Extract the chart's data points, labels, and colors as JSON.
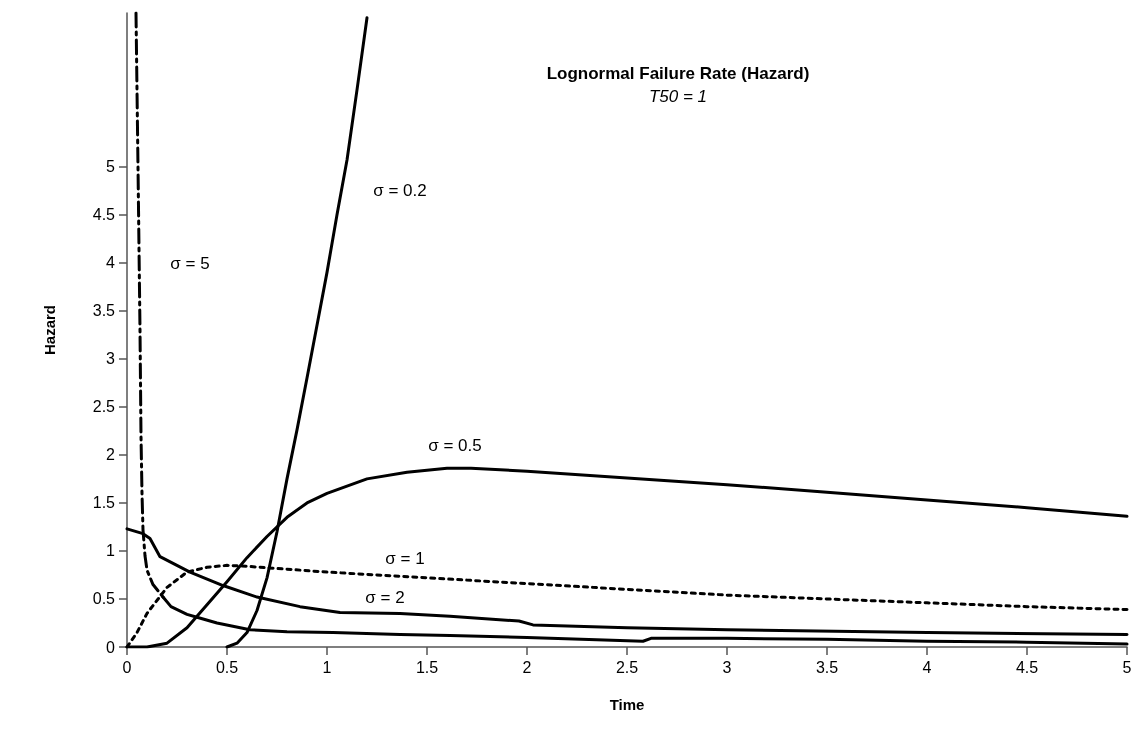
{
  "chart_data": {
    "type": "line",
    "title": "Lognormal Failure Rate (Hazard)",
    "subtitle": "T50 = 1",
    "xlabel": "Time",
    "ylabel": "Hazard",
    "xlim": [
      0,
      5
    ],
    "xticks": [
      0,
      0.5,
      1,
      1.5,
      2,
      2.5,
      3,
      3.5,
      4,
      4.5,
      5
    ],
    "ylim": [
      0,
      6.6
    ],
    "yticks": [
      0,
      0.5,
      1,
      1.5,
      2,
      2.5,
      3,
      3.5,
      4,
      4.5,
      5
    ],
    "grid": false,
    "marker": "none",
    "series": [
      {
        "color": "#000000",
        "line_style": "solid",
        "x": [
          0.5,
          0.55,
          0.6,
          0.65,
          0.7,
          0.75,
          0.8,
          0.85,
          0.9,
          0.95,
          1.0,
          1.05,
          1.1,
          1.15,
          1.2
        ],
        "values": [
          0,
          0.04,
          0.15,
          0.38,
          0.72,
          1.2,
          1.75,
          2.26,
          2.8,
          3.35,
          3.9,
          4.5,
          5.07,
          5.8,
          6.55
        ]
      },
      {
        "color": "#000000",
        "line_style": "solid",
        "x": [
          0,
          0.1,
          0.2,
          0.3,
          0.4,
          0.5,
          0.6,
          0.7,
          0.8,
          0.9,
          1.0,
          1.2,
          1.4,
          1.6,
          1.72,
          2.0,
          2.5,
          3,
          3.5,
          4,
          4.5,
          5
        ],
        "values": [
          0,
          0,
          0.04,
          0.2,
          0.44,
          0.68,
          0.93,
          1.15,
          1.35,
          1.5,
          1.6,
          1.75,
          1.82,
          1.86,
          1.86,
          1.83,
          1.76,
          1.69,
          1.61,
          1.53,
          1.45,
          1.36
        ]
      },
      {
        "color": "#000000",
        "line_style": "dotted",
        "x": [
          0,
          0.05,
          0.1,
          0.2,
          0.3,
          0.4,
          0.5,
          0.6,
          0.8,
          1,
          1.5,
          2,
          2.5,
          3,
          3.5,
          4,
          4.5,
          5
        ],
        "values": [
          0,
          0.15,
          0.35,
          0.62,
          0.78,
          0.83,
          0.85,
          0.84,
          0.81,
          0.78,
          0.72,
          0.66,
          0.6,
          0.54,
          0.5,
          0.46,
          0.42,
          0.39
        ]
      },
      {
        "color": "#000000",
        "line_style": "solid",
        "x": [
          0,
          0.08,
          0.115,
          0.165,
          0.315,
          0.48,
          0.65,
          0.865,
          1.065,
          1.365,
          1.615,
          1.96,
          2.03,
          2.5,
          3,
          4,
          5
        ],
        "values": [
          1.23,
          1.18,
          1.13,
          0.94,
          0.78,
          0.64,
          0.52,
          0.42,
          0.36,
          0.35,
          0.32,
          0.27,
          0.23,
          0.2,
          0.18,
          0.15,
          0.13
        ]
      },
      {
        "color": "#000000",
        "line_style": "dashed",
        "x": [
          0.045,
          0.055,
          0.065,
          0.07,
          0.075,
          0.08,
          0.09,
          0.1,
          0.13,
          0.18
        ],
        "values": [
          6.6,
          5,
          3.3,
          2.2,
          1.6,
          1.22,
          0.95,
          0.8,
          0.65,
          0.52
        ]
      },
      {
        "color": "#000000",
        "line_style": "solid",
        "x": [
          0.18,
          0.22,
          0.3,
          0.35,
          0.45,
          0.615,
          0.8,
          1.03,
          1.365,
          1.615,
          2,
          2.58,
          2.62,
          3,
          3.5,
          4,
          4.5,
          5
        ],
        "values": [
          0.52,
          0.42,
          0.34,
          0.31,
          0.25,
          0.18,
          0.16,
          0.15,
          0.13,
          0.12,
          0.1,
          0.06,
          0.09,
          0.09,
          0.08,
          0.06,
          0.05,
          0.03
        ]
      }
    ],
    "annotations": [
      "σ = 0.2",
      "σ = 5",
      "σ = 0.5",
      "σ = 1",
      "σ = 2"
    ]
  }
}
